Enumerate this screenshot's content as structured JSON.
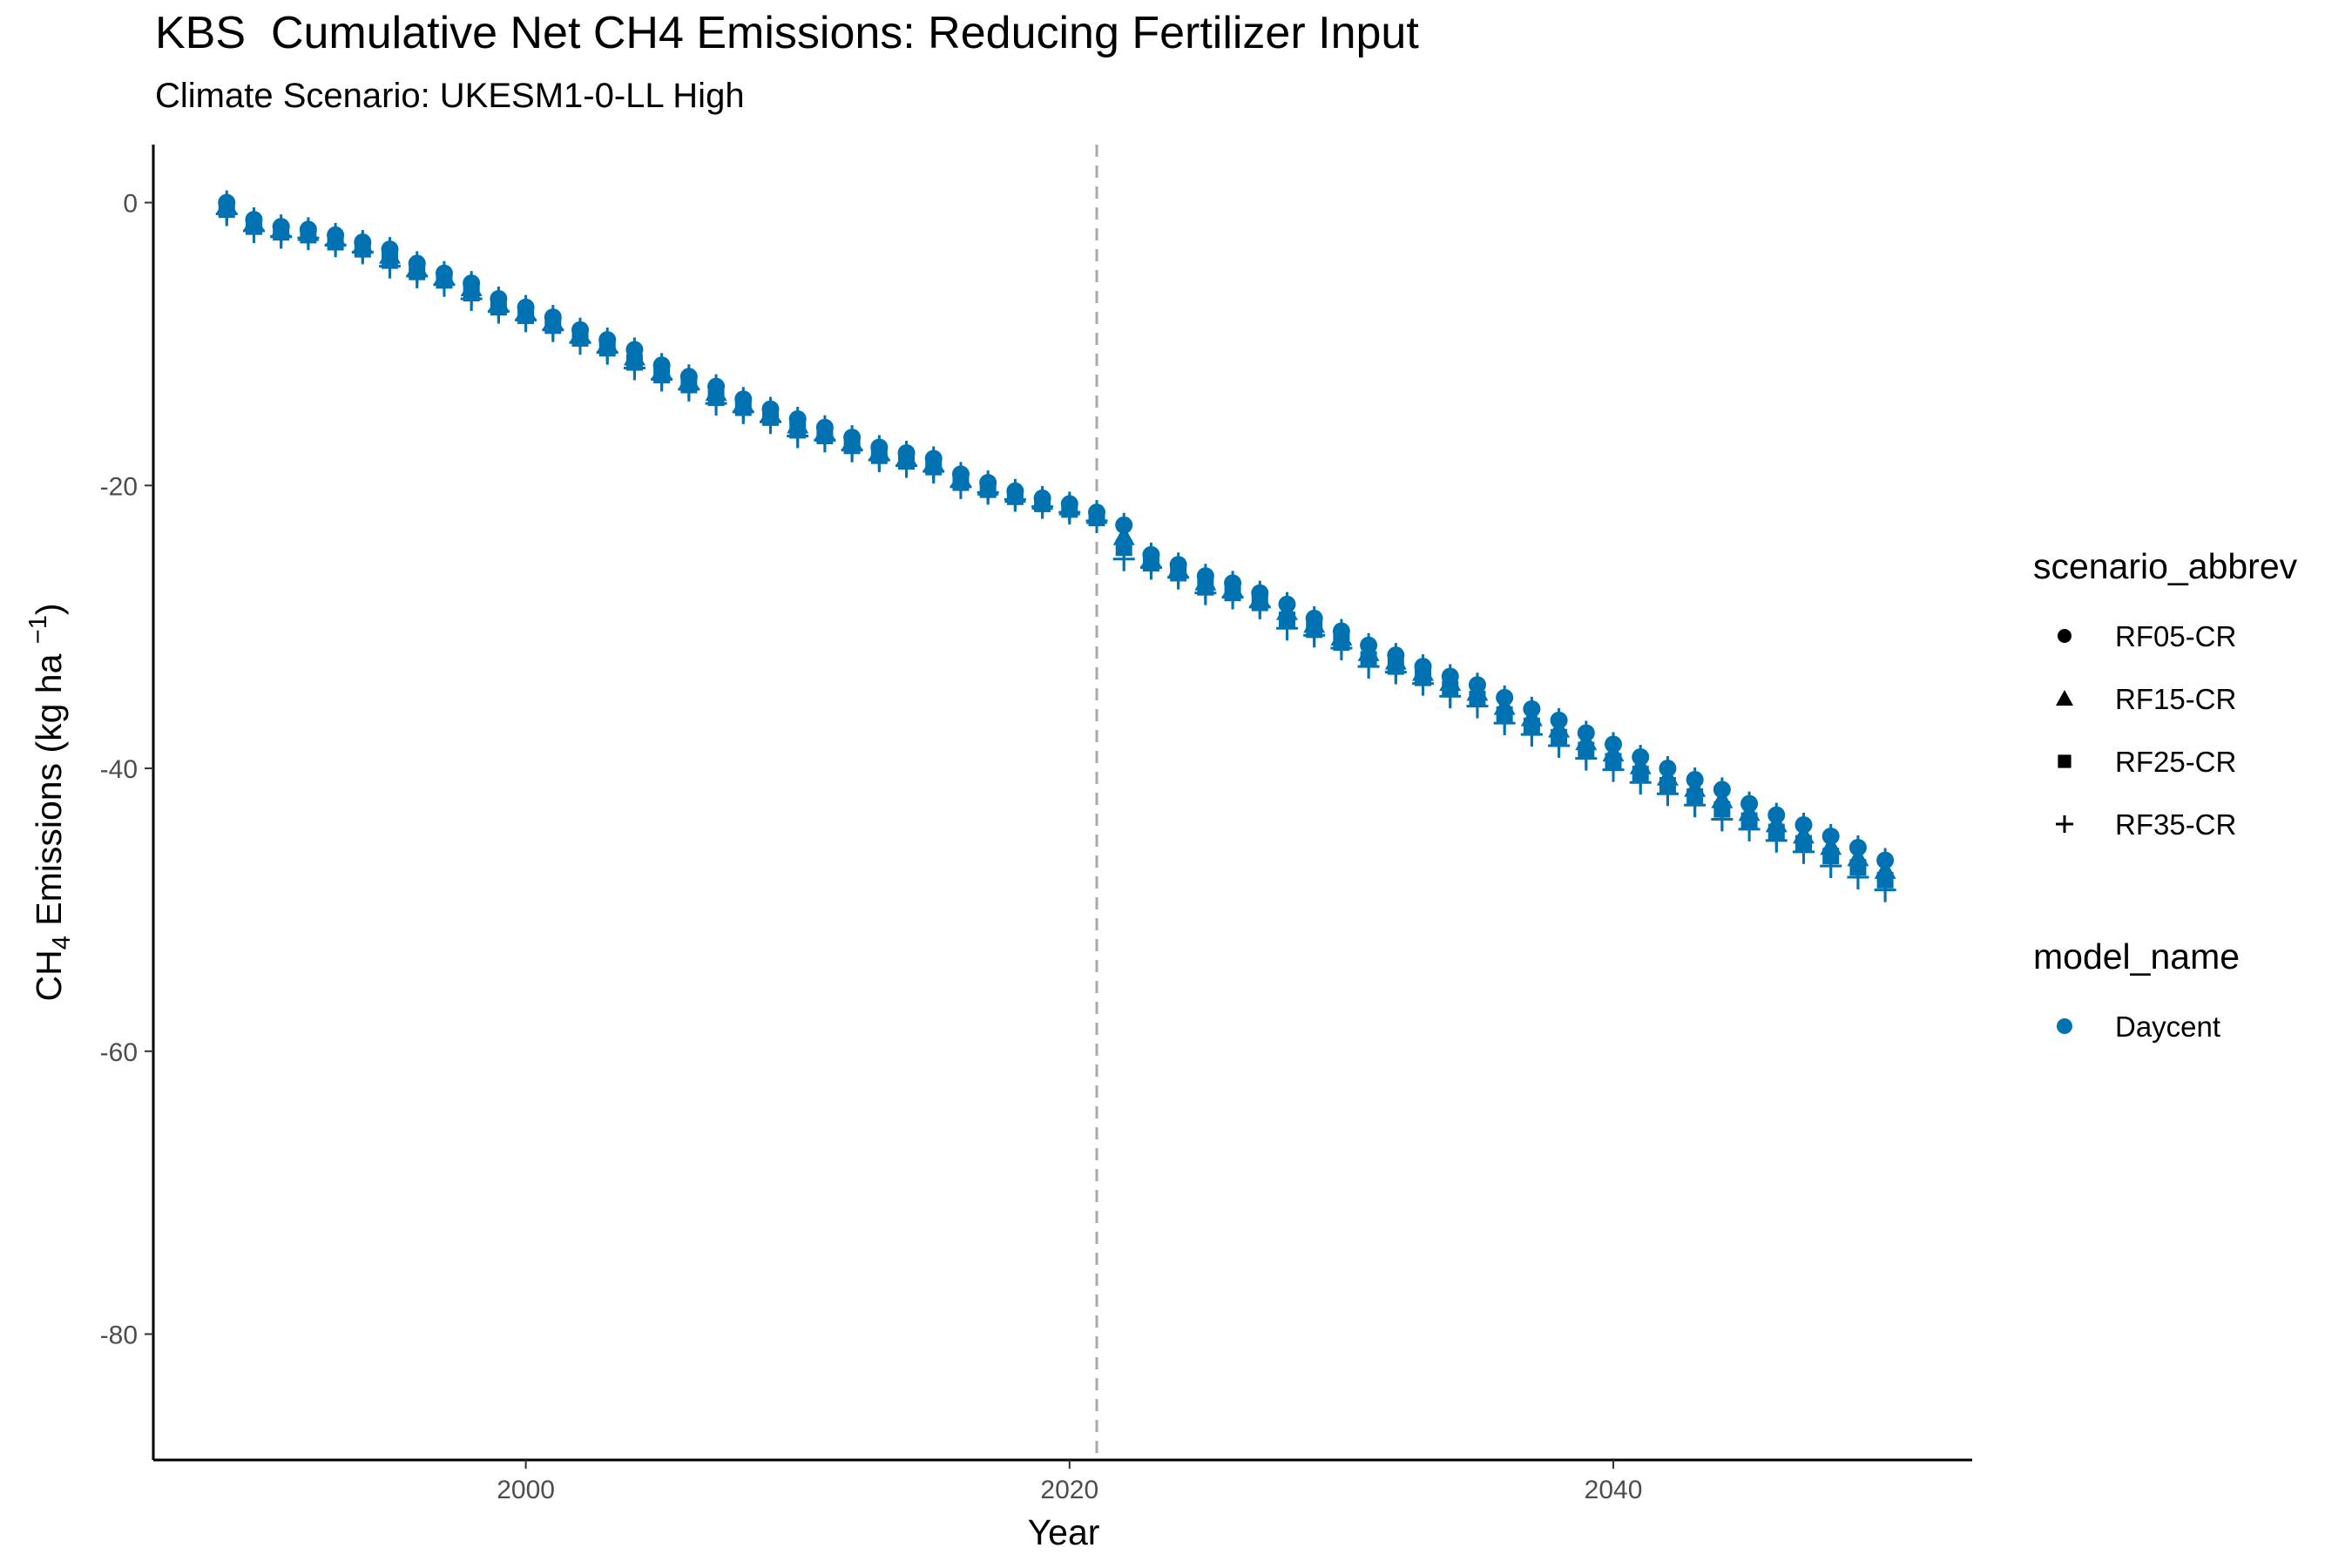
{
  "chart_data": {
    "type": "scatter",
    "title": "KBS  Cumulative Net CH4 Emissions: Reducing Fertilizer Input",
    "subtitle": "Climate Scenario: UKESM1-0-LL High",
    "xlabel": "Year",
    "ylabel": {
      "pre": "CH",
      "sub": "4",
      "mid": " Emissions (kg ha ",
      "sup": "−1",
      "post": ")"
    },
    "xlim": [
      1986.3,
      2053.2
    ],
    "ylim": [
      -88.9,
      4.1
    ],
    "x_ticks": [
      2000,
      2020,
      2040
    ],
    "y_ticks": [
      0,
      -20,
      -40,
      -60,
      -80
    ],
    "y_tick_labels": [
      "0",
      "-20",
      "-40",
      "-60",
      "-80"
    ],
    "grid": false,
    "reference_line": {
      "x": 2021,
      "style": "dashed",
      "color": "#aaaaaa"
    },
    "point_color": "#0072b2",
    "years": [
      1989,
      1990,
      1991,
      1992,
      1993,
      1994,
      1995,
      1996,
      1997,
      1998,
      1999,
      2000,
      2001,
      2002,
      2003,
      2004,
      2005,
      2006,
      2007,
      2008,
      2009,
      2010,
      2011,
      2012,
      2013,
      2014,
      2015,
      2016,
      2017,
      2018,
      2019,
      2020,
      2021,
      2022,
      2023,
      2024,
      2025,
      2026,
      2027,
      2028,
      2029,
      2030,
      2031,
      2032,
      2033,
      2034,
      2035,
      2036,
      2037,
      2038,
      2039,
      2040,
      2041,
      2042,
      2043,
      2044,
      2045,
      2046,
      2047,
      2048,
      2049,
      2050
    ],
    "series": [
      {
        "name": "RF05-CR",
        "shape": "circle",
        "values": [
          0.0,
          -1.2,
          -1.7,
          -1.9,
          -2.3,
          -2.8,
          -3.3,
          -4.3,
          -5.0,
          -5.7,
          -6.8,
          -7.4,
          -8.1,
          -9.0,
          -9.7,
          -10.4,
          -11.5,
          -12.3,
          -13.0,
          -13.9,
          -14.6,
          -15.3,
          -15.9,
          -16.6,
          -17.3,
          -17.7,
          -18.1,
          -19.2,
          -19.8,
          -20.4,
          -20.9,
          -21.3,
          -21.9,
          -22.8,
          -24.9,
          -25.6,
          -26.4,
          -26.9,
          -27.6,
          -28.4,
          -29.4,
          -30.3,
          -31.3,
          -32.0,
          -32.8,
          -33.5,
          -34.1,
          -35.0,
          -35.8,
          -36.6,
          -37.5,
          -38.3,
          -39.2,
          -40.0,
          -40.8,
          -41.5,
          -42.5,
          -43.3,
          -44.0,
          -44.8,
          -45.6,
          -46.5
        ]
      },
      {
        "name": "RF15-CR",
        "shape": "triangle",
        "values": [
          -0.2,
          -1.4,
          -1.9,
          -2.1,
          -2.5,
          -3.0,
          -3.7,
          -4.6,
          -5.2,
          -6.0,
          -7.1,
          -7.7,
          -8.4,
          -9.3,
          -10.0,
          -10.9,
          -11.9,
          -12.6,
          -13.4,
          -14.2,
          -14.9,
          -15.7,
          -16.2,
          -16.9,
          -17.6,
          -18.0,
          -18.4,
          -19.5,
          -20.1,
          -20.6,
          -21.1,
          -21.5,
          -22.1,
          -23.6,
          -25.2,
          -25.9,
          -26.8,
          -27.3,
          -28.0,
          -28.9,
          -29.8,
          -30.7,
          -31.8,
          -32.4,
          -33.2,
          -33.9,
          -34.6,
          -35.6,
          -36.4,
          -37.2,
          -38.1,
          -38.9,
          -39.8,
          -40.6,
          -41.4,
          -42.2,
          -43.1,
          -43.9,
          -44.7,
          -45.5,
          -46.3,
          -47.2
        ]
      },
      {
        "name": "RF25-CR",
        "shape": "square",
        "values": [
          -0.5,
          -1.7,
          -2.1,
          -2.3,
          -2.8,
          -3.3,
          -4.1,
          -4.9,
          -5.5,
          -6.4,
          -7.4,
          -8.0,
          -8.7,
          -9.6,
          -10.3,
          -11.3,
          -12.2,
          -12.9,
          -13.8,
          -14.5,
          -15.2,
          -16.1,
          -16.5,
          -17.2,
          -17.9,
          -18.3,
          -18.7,
          -19.8,
          -20.3,
          -20.8,
          -21.3,
          -21.7,
          -22.3,
          -24.4,
          -25.5,
          -26.2,
          -27.2,
          -27.6,
          -28.3,
          -29.5,
          -30.2,
          -31.1,
          -32.3,
          -32.8,
          -33.6,
          -34.4,
          -35.1,
          -36.2,
          -37.0,
          -37.8,
          -38.7,
          -39.5,
          -40.4,
          -41.2,
          -42.0,
          -42.9,
          -43.7,
          -44.5,
          -45.3,
          -46.2,
          -47.0,
          -47.9
        ]
      },
      {
        "name": "RF35-CR",
        "shape": "cross",
        "values": [
          -0.8,
          -2.0,
          -2.4,
          -2.5,
          -3.0,
          -3.5,
          -4.5,
          -5.2,
          -5.8,
          -6.8,
          -7.7,
          -8.3,
          -9.0,
          -9.9,
          -10.6,
          -11.7,
          -12.5,
          -13.2,
          -14.2,
          -14.8,
          -15.5,
          -16.5,
          -16.8,
          -17.5,
          -18.2,
          -18.6,
          -19.0,
          -20.1,
          -20.5,
          -21.0,
          -21.5,
          -21.9,
          -22.5,
          -25.2,
          -25.8,
          -26.5,
          -27.6,
          -27.9,
          -28.6,
          -30.1,
          -30.6,
          -31.5,
          -32.8,
          -33.2,
          -34.0,
          -34.9,
          -35.6,
          -36.8,
          -37.6,
          -38.4,
          -39.3,
          -40.1,
          -41.0,
          -41.8,
          -42.6,
          -43.6,
          -44.3,
          -45.1,
          -45.9,
          -46.9,
          -47.7,
          -48.6
        ]
      }
    ],
    "legend": {
      "placement": "right",
      "shape_title": "scenario_abbrev",
      "shape_items": [
        {
          "label": "RF05-CR",
          "shape": "circle"
        },
        {
          "label": "RF15-CR",
          "shape": "triangle"
        },
        {
          "label": "RF25-CR",
          "shape": "square"
        },
        {
          "label": "RF35-CR",
          "shape": "cross"
        }
      ],
      "color_title": "model_name",
      "color_items": [
        {
          "label": "Daycent",
          "color": "#0072b2"
        }
      ]
    }
  }
}
